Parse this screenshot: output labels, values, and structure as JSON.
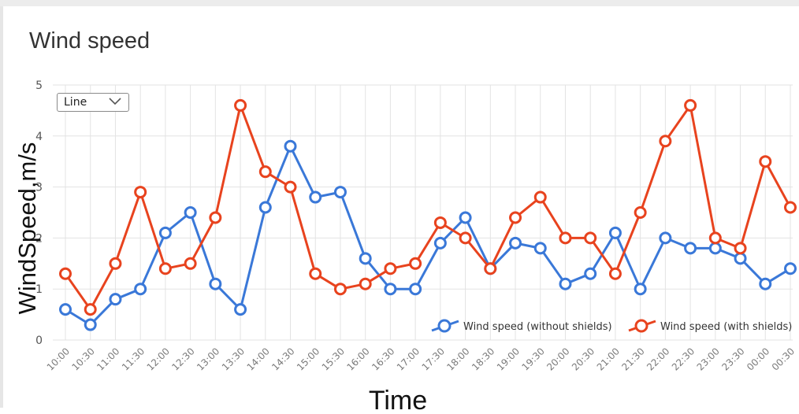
{
  "widget": {
    "title": "Wind speed",
    "view_selector": {
      "selected": "Line",
      "icon": "chevron-down-icon"
    }
  },
  "chart_data": {
    "type": "line",
    "title": "Wind speed",
    "xlabel": "Time",
    "ylabel": "WindSpeed,m/s",
    "ylim": [
      0,
      5
    ],
    "yticks": [
      0,
      1,
      2,
      3,
      4,
      5
    ],
    "grid": true,
    "legend_position": "bottom-right",
    "categories": [
      "10:00",
      "10:30",
      "11:00",
      "11:30",
      "12:00",
      "12:30",
      "13:00",
      "13:30",
      "14:00",
      "14:30",
      "15:00",
      "15:30",
      "16:00",
      "16:30",
      "17:00",
      "17:30",
      "18:00",
      "18:30",
      "19:00",
      "19:30",
      "20:00",
      "20:30",
      "21:00",
      "21:30",
      "22:00",
      "22:30",
      "23:00",
      "23:30",
      "00:00",
      "00:30"
    ],
    "series": [
      {
        "name": "Wind speed (without shields)",
        "color": "#3a78d8",
        "values": [
          0.6,
          0.3,
          0.8,
          1.0,
          2.1,
          2.5,
          1.1,
          0.6,
          2.6,
          3.8,
          2.8,
          2.9,
          1.6,
          1.0,
          1.0,
          1.9,
          2.4,
          1.4,
          1.9,
          1.8,
          1.1,
          1.3,
          2.1,
          1.0,
          2.0,
          1.8,
          1.8,
          1.6,
          1.1,
          1.4
        ]
      },
      {
        "name": "Wind speed (with shields)",
        "color": "#e8431e",
        "values": [
          1.3,
          0.6,
          1.5,
          2.9,
          1.4,
          1.5,
          2.4,
          4.6,
          3.3,
          3.0,
          1.3,
          1.0,
          1.1,
          1.4,
          1.5,
          2.3,
          2.0,
          1.4,
          2.4,
          2.8,
          2.0,
          2.0,
          1.3,
          2.5,
          3.9,
          4.6,
          2.0,
          1.8,
          3.5,
          2.6
        ]
      }
    ]
  }
}
